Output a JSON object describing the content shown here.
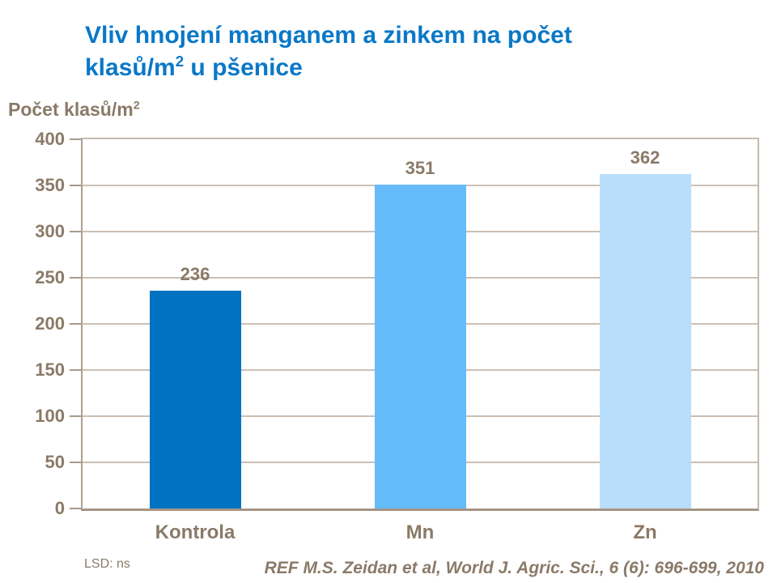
{
  "title": {
    "line1": "Vliv hnojení manganem a zinkem na počet",
    "line2_text": "klasů/m",
    "line2_sup": "2",
    "line2_rest": " u pšenice"
  },
  "y_axis_title": {
    "text": "Počet klasů/m",
    "sup": "2"
  },
  "footnotes": {
    "lsd": "LSD: ns",
    "reference": "REF M.S. Zeidan et al, World J. Agric. Sci., 6 (6): 696-699, 2010"
  },
  "colors": {
    "title_blue": "#0A78C8",
    "text_brown": "#8A7A68",
    "axis_line": "#A59585",
    "gridline": "#CBC0B4",
    "bar_kontrola": "#0072C2",
    "bar_mn": "#66BBF9",
    "bar_zn": "#B9DEFB"
  },
  "chart_data": {
    "type": "bar",
    "title": "Vliv hnojení manganem a zinkem na počet klasů/m2 u pšenice",
    "categories": [
      "Kontrola",
      "Mn",
      "Zn"
    ],
    "values": [
      236,
      351,
      362
    ],
    "data_labels": [
      "236",
      "351",
      "362"
    ],
    "bar_colors": [
      "#0072C2",
      "#66BBF9",
      "#B9DEFB"
    ],
    "xlabel": "",
    "ylabel": "Počet klasů/m2",
    "ylim": [
      0,
      400
    ],
    "yticks": [
      0,
      50,
      100,
      150,
      200,
      250,
      300,
      350,
      400
    ],
    "grid": true,
    "legend": false,
    "legend_position": "none"
  }
}
